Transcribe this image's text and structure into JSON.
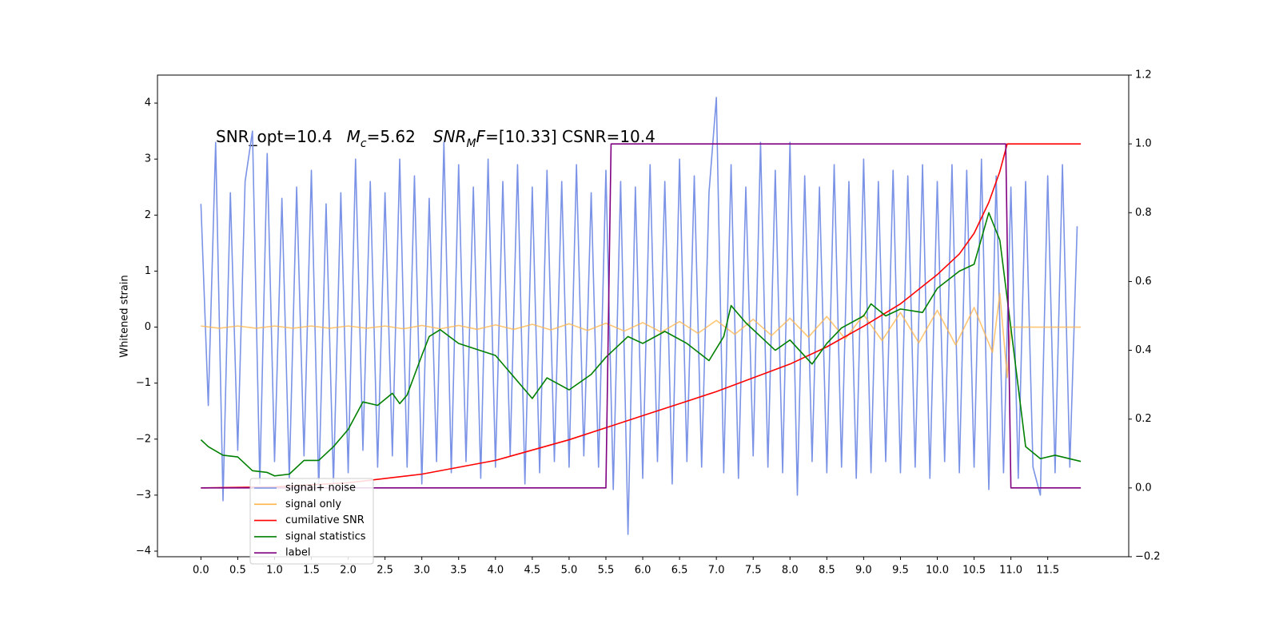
{
  "chart_data": {
    "type": "line",
    "title_parts": [
      "SNR_opt=10.4",
      "M",
      "c",
      "=5.62",
      "SNR",
      "M",
      "F",
      "=[10.33] CSNR=10.4"
    ],
    "ylabel": "Whitened strain",
    "xlim": [
      -0.59,
      12.6
    ],
    "ylim": [
      -4.1,
      4.5
    ],
    "y2lim": [
      -0.2,
      1.2
    ],
    "xticks": [
      {
        "value": 0,
        "label": "0.0"
      },
      0.5,
      {
        "value": 1,
        "label": "1.0"
      },
      1.5,
      {
        "value": 2,
        "label": "2.0"
      },
      2.5,
      {
        "value": 3,
        "label": "3.0"
      },
      3.5,
      {
        "value": 4,
        "label": "4.0"
      },
      4.5,
      {
        "value": 5,
        "label": "5.0"
      },
      5.5,
      {
        "value": 6,
        "label": "6.0"
      },
      6.5,
      {
        "value": 7,
        "label": "7.0"
      },
      7.5,
      {
        "value": 8,
        "label": "8.0"
      },
      8.5,
      {
        "value": 9,
        "label": "9.0"
      },
      9.5,
      {
        "value": 10,
        "label": "10.0"
      },
      10.5,
      {
        "value": 11,
        "label": "11.0"
      },
      11.5
    ],
    "yticks": [
      {
        "value": -4,
        "label": "−4"
      },
      {
        "value": -3,
        "label": "−3"
      },
      {
        "value": -2,
        "label": "−2"
      },
      {
        "value": -1,
        "label": "−1"
      },
      0,
      1,
      2,
      3,
      4
    ],
    "y2ticks": [
      {
        "value": -0.2,
        "label": "−0.2"
      },
      {
        "value": 0,
        "label": "0.0"
      },
      0.2,
      0.4,
      0.6,
      0.8,
      {
        "value": 1,
        "label": "1.0"
      },
      1.2
    ],
    "legend": "lower left",
    "series": [
      {
        "name": "signal+ noise",
        "color": "#7b93e6",
        "x": [
          0,
          0.1,
          0.2,
          0.3,
          0.4,
          0.5,
          0.6,
          0.7,
          0.8,
          0.9,
          1,
          1.1,
          1.2,
          1.3,
          1.4,
          1.5,
          1.6,
          1.7,
          1.8,
          1.9,
          2,
          2.1,
          2.2,
          2.3,
          2.4,
          2.5,
          2.6,
          2.7,
          2.8,
          2.9,
          3,
          3.1,
          3.2,
          3.3,
          3.4,
          3.5,
          3.6,
          3.7,
          3.8,
          3.9,
          4,
          4.1,
          4.2,
          4.3,
          4.4,
          4.5,
          4.6,
          4.7,
          4.8,
          4.9,
          5,
          5.1,
          5.2,
          5.3,
          5.4,
          5.5,
          5.6,
          5.7,
          5.8,
          5.9,
          6,
          6.1,
          6.2,
          6.3,
          6.4,
          6.5,
          6.6,
          6.7,
          6.8,
          6.9,
          7,
          7.1,
          7.2,
          7.3,
          7.4,
          7.5,
          7.6,
          7.7,
          7.8,
          7.9,
          8,
          8.1,
          8.2,
          8.3,
          8.4,
          8.5,
          8.6,
          8.7,
          8.8,
          8.9,
          9,
          9.1,
          9.2,
          9.3,
          9.4,
          9.5,
          9.6,
          9.7,
          9.8,
          9.9,
          10,
          10.1,
          10.2,
          10.3,
          10.4,
          10.5,
          10.6,
          10.7,
          10.8,
          10.9,
          11,
          11.1,
          11.2,
          11.3,
          11.4,
          11.5,
          11.6,
          11.7,
          11.8,
          11.9
        ],
        "values": [
          2.2,
          -1.4,
          3.3,
          -3.1,
          2.4,
          -2.2,
          2.6,
          3.5,
          -2.8,
          3.1,
          -2.4,
          2.3,
          -2.7,
          2.5,
          -2.3,
          2.8,
          -2.9,
          2.2,
          -2.8,
          2.4,
          -2.6,
          3.0,
          -2.2,
          2.6,
          -2.5,
          2.4,
          -2.3,
          3.0,
          -2.5,
          2.7,
          -2.8,
          2.3,
          -2.4,
          3.3,
          -2.6,
          2.9,
          -2.4,
          2.5,
          -2.7,
          3.0,
          -2.5,
          2.6,
          -2.3,
          2.9,
          -2.8,
          2.5,
          -2.6,
          2.8,
          -2.4,
          2.6,
          -2.5,
          2.9,
          -2.3,
          2.4,
          -2.5,
          2.8,
          -2.9,
          2.6,
          -3.7,
          2.5,
          -2.7,
          2.9,
          -2.4,
          2.6,
          -2.8,
          3.0,
          -2.4,
          2.7,
          -2.5,
          2.4,
          4.1,
          -2.6,
          2.9,
          -2.7,
          2.5,
          -2.3,
          3.3,
          -2.5,
          2.8,
          -2.6,
          3.3,
          -3.0,
          2.7,
          -2.4,
          2.5,
          -2.6,
          2.9,
          -2.5,
          2.6,
          -2.7,
          3.0,
          -2.6,
          2.6,
          -2.4,
          2.8,
          -2.6,
          2.7,
          -2.5,
          2.9,
          -2.7,
          2.6,
          -2.4,
          2.9,
          -2.6,
          2.8,
          -2.5,
          3.0,
          -2.9,
          2.7,
          -2.6,
          2.5,
          -2.7,
          2.6,
          -2.5,
          -3.0,
          2.7,
          -2.6,
          2.9,
          -2.5,
          1.8
        ]
      },
      {
        "name": "signal only",
        "color": "#ffb347",
        "x": [
          0,
          0.25,
          0.5,
          0.75,
          1,
          1.25,
          1.5,
          1.75,
          2,
          2.25,
          2.5,
          2.75,
          3,
          3.25,
          3.5,
          3.75,
          4,
          4.25,
          4.5,
          4.75,
          5,
          5.25,
          5.5,
          5.75,
          6,
          6.25,
          6.5,
          6.75,
          7,
          7.25,
          7.5,
          7.75,
          8,
          8.25,
          8.5,
          8.75,
          9,
          9.25,
          9.5,
          9.75,
          10,
          10.25,
          10.5,
          10.75,
          10.85,
          10.95,
          11,
          11.95
        ],
        "values": [
          0.02,
          -0.02,
          0.02,
          -0.02,
          0.02,
          -0.02,
          0.02,
          -0.02,
          0.02,
          -0.02,
          0.02,
          -0.03,
          0.03,
          -0.03,
          0.03,
          -0.04,
          0.04,
          -0.04,
          0.05,
          -0.05,
          0.06,
          -0.06,
          0.07,
          -0.07,
          0.08,
          -0.09,
          0.1,
          -0.11,
          0.12,
          -0.13,
          0.14,
          -0.15,
          0.16,
          -0.18,
          0.19,
          -0.21,
          0.22,
          -0.24,
          0.26,
          -0.28,
          0.3,
          -0.32,
          0.35,
          -0.45,
          0.6,
          -0.9,
          0,
          0
        ]
      },
      {
        "name": "cumilative SNR",
        "color": "#ff0000",
        "axis": "y2",
        "x": [
          0,
          1,
          2,
          3,
          4,
          5,
          5.5,
          6,
          6.5,
          7,
          7.5,
          8,
          8.5,
          9,
          9.5,
          10,
          10.3,
          10.5,
          10.7,
          10.85,
          10.95,
          11,
          11.95
        ],
        "values": [
          0,
          0.003,
          0.015,
          0.04,
          0.08,
          0.14,
          0.175,
          0.21,
          0.245,
          0.28,
          0.32,
          0.36,
          0.41,
          0.47,
          0.535,
          0.62,
          0.68,
          0.74,
          0.83,
          0.92,
          1,
          1,
          1
        ]
      },
      {
        "name": "signal statistics",
        "color": "#008000",
        "axis": "y2",
        "x": [
          0,
          0.1,
          0.3,
          0.5,
          0.7,
          0.9,
          1,
          1.2,
          1.4,
          1.6,
          1.8,
          2,
          2.2,
          2.4,
          2.6,
          2.7,
          2.8,
          3,
          3.1,
          3.25,
          3.5,
          4,
          4.5,
          4.7,
          5,
          5.3,
          5.5,
          5.8,
          6,
          6.3,
          6.6,
          6.9,
          7.1,
          7.2,
          7.4,
          7.6,
          7.8,
          8,
          8.3,
          8.5,
          8.7,
          9,
          9.1,
          9.3,
          9.5,
          9.8,
          10,
          10.3,
          10.5,
          10.7,
          10.85,
          11,
          11.2,
          11.4,
          11.6,
          11.95
        ],
        "values": [
          0.14,
          0.12,
          0.095,
          0.09,
          0.05,
          0.045,
          0.035,
          0.04,
          0.08,
          0.08,
          0.12,
          0.17,
          0.25,
          0.24,
          0.275,
          0.245,
          0.27,
          0.385,
          0.44,
          0.46,
          0.42,
          0.385,
          0.26,
          0.32,
          0.285,
          0.33,
          0.38,
          0.44,
          0.42,
          0.455,
          0.42,
          0.37,
          0.44,
          0.53,
          0.48,
          0.44,
          0.4,
          0.43,
          0.36,
          0.42,
          0.465,
          0.5,
          0.535,
          0.5,
          0.52,
          0.51,
          0.58,
          0.63,
          0.65,
          0.8,
          0.72,
          0.465,
          0.12,
          0.085,
          0.095,
          0.077
        ]
      },
      {
        "name": "label",
        "color": "#800080",
        "axis": "y2",
        "x": [
          0,
          5.5,
          5.57,
          10.93,
          11,
          11.95
        ],
        "values": [
          0,
          0,
          1,
          1,
          0,
          0
        ]
      }
    ]
  }
}
